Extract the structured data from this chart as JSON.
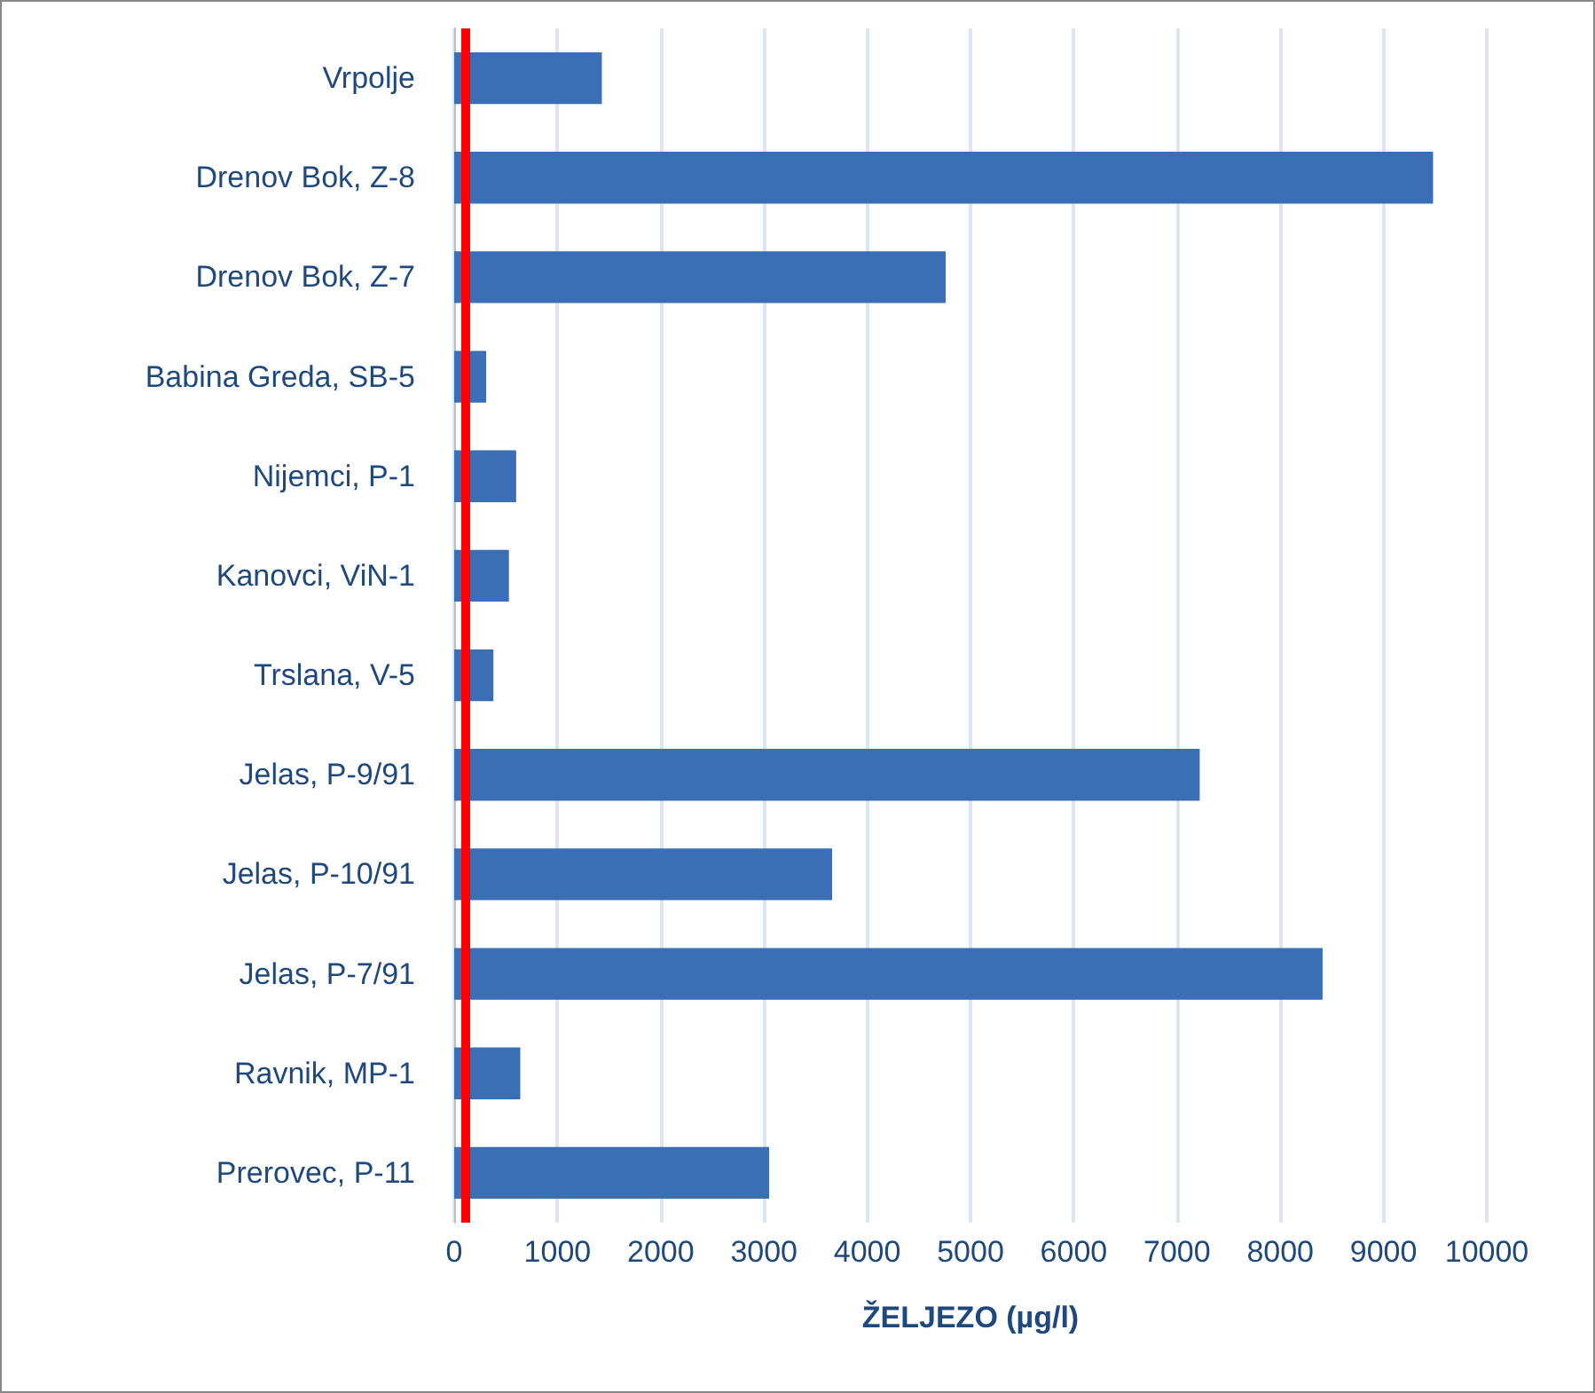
{
  "chart_data": {
    "type": "bar",
    "orientation": "horizontal",
    "xlabel": "ŽELJEZO (µg/l)",
    "categories": [
      "Vrpolje",
      "Drenov Bok, Z-8",
      "Drenov Bok, Z-7",
      "Babina Greda, SB-5",
      "Nijemci, P-1",
      "Kanovci, ViN-1",
      "Trslana, V-5",
      "Jelas, P-9/91",
      "Jelas, P-10/91",
      "Jelas, P-7/91",
      "Ravnik, MP-1",
      "Prerovec, P-11"
    ],
    "values": [
      1430,
      9480,
      4760,
      310,
      600,
      530,
      380,
      7220,
      3660,
      8410,
      640,
      3050
    ],
    "color": "#3a6fb5",
    "xlim": [
      0,
      10000
    ],
    "xticks": [
      0,
      1000,
      2000,
      3000,
      4000,
      5000,
      6000,
      7000,
      8000,
      9000,
      10000
    ],
    "grid": "x",
    "ref_lines": [
      {
        "axis": "x",
        "value": 100,
        "color": "#ff0000"
      }
    ]
  }
}
